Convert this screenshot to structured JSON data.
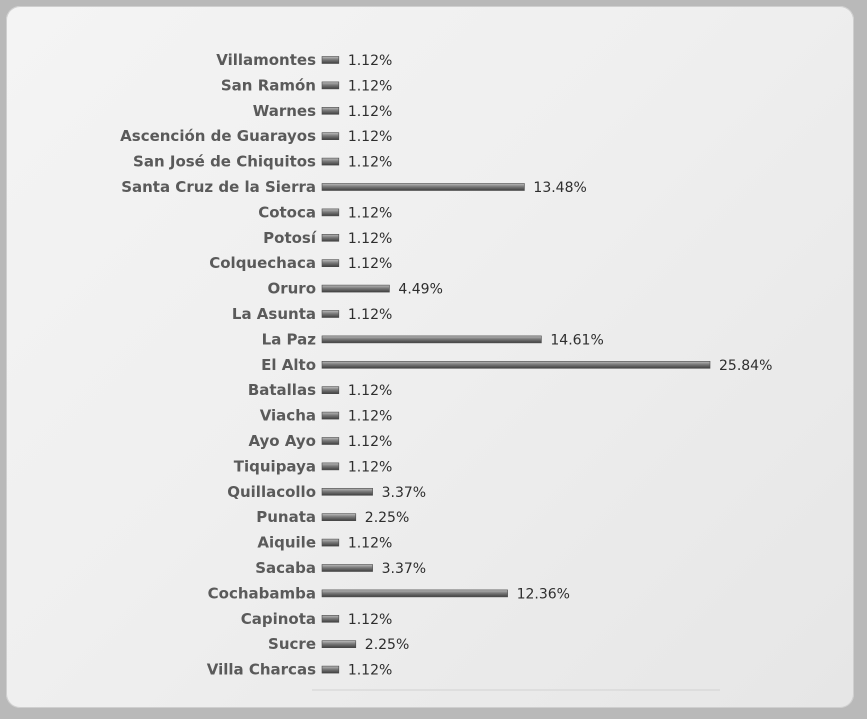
{
  "chart_data": {
    "type": "bar",
    "orientation": "horizontal",
    "categories": [
      "Villamontes",
      "San Ramón",
      "Warnes",
      "Ascención de Guarayos",
      "San José de Chiquitos",
      "Santa Cruz de la Sierra",
      "Cotoca",
      "Potosí",
      "Colquechaca",
      "Oruro",
      "La Asunta",
      "La Paz",
      "El Alto",
      "Batallas",
      "Viacha",
      "Ayo Ayo",
      "Tiquipaya",
      "Quillacollo",
      "Punata",
      "Aiquile",
      "Sacaba",
      "Cochabamba",
      "Capinota",
      "Sucre",
      "Villa Charcas"
    ],
    "values": [
      1.12,
      1.12,
      1.12,
      1.12,
      1.12,
      13.48,
      1.12,
      1.12,
      1.12,
      4.49,
      1.12,
      14.61,
      25.84,
      1.12,
      1.12,
      1.12,
      1.12,
      3.37,
      2.25,
      1.12,
      3.37,
      12.36,
      1.12,
      2.25,
      1.12
    ],
    "value_labels": [
      "1.12%",
      "1.12%",
      "1.12%",
      "1.12%",
      "1.12%",
      "13.48%",
      "1.12%",
      "1.12%",
      "1.12%",
      "4.49%",
      "1.12%",
      "14.61%",
      "25.84%",
      "1.12%",
      "1.12%",
      "1.12%",
      "1.12%",
      "3.37%",
      "2.25%",
      "1.12%",
      "3.37%",
      "12.36%",
      "1.12%",
      "2.25%",
      "1.12%"
    ],
    "unit": "%",
    "title": "",
    "xlabel": "",
    "ylabel": "",
    "xlim": [
      0,
      25.84
    ],
    "grid": false,
    "legend": "none",
    "bar_color": "#6f6f6f"
  }
}
